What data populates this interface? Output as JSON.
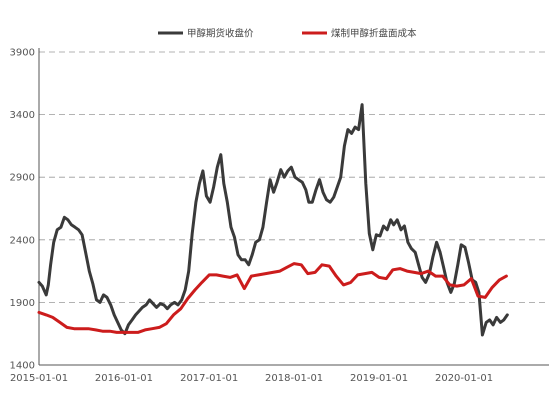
{
  "chart_data": {
    "type": "line",
    "legend_position": "top",
    "grid": {
      "horizontal": true,
      "vertical": false,
      "style": "dashed"
    },
    "ylim": [
      1400,
      3900
    ],
    "y_ticks": [
      1400,
      1900,
      2400,
      2900,
      3400,
      3900
    ],
    "xlim": [
      "2015-01-01",
      "2020-12-31"
    ],
    "x_ticks": [
      "2015-01-01",
      "2016-01-01",
      "2017-01-01",
      "2018-01-01",
      "2019-01-01",
      "2020-01-01"
    ],
    "series": [
      {
        "name": "甲醇期货收盘价",
        "color": "#3a3a3a",
        "points": [
          [
            "2015-01-01",
            2060
          ],
          [
            "2015-01-15",
            2030
          ],
          [
            "2015-02-01",
            1960
          ],
          [
            "2015-02-10",
            2040
          ],
          [
            "2015-02-20",
            2200
          ],
          [
            "2015-03-05",
            2380
          ],
          [
            "2015-03-20",
            2480
          ],
          [
            "2015-04-05",
            2500
          ],
          [
            "2015-04-20",
            2580
          ],
          [
            "2015-05-05",
            2560
          ],
          [
            "2015-05-20",
            2520
          ],
          [
            "2015-06-05",
            2500
          ],
          [
            "2015-06-20",
            2480
          ],
          [
            "2015-07-05",
            2440
          ],
          [
            "2015-07-20",
            2300
          ],
          [
            "2015-08-05",
            2150
          ],
          [
            "2015-08-20",
            2050
          ],
          [
            "2015-09-05",
            1920
          ],
          [
            "2015-09-20",
            1900
          ],
          [
            "2015-10-05",
            1960
          ],
          [
            "2015-10-20",
            1940
          ],
          [
            "2015-11-05",
            1880
          ],
          [
            "2015-11-20",
            1800
          ],
          [
            "2015-12-05",
            1740
          ],
          [
            "2015-12-20",
            1680
          ],
          [
            "2016-01-05",
            1650
          ],
          [
            "2016-01-20",
            1720
          ],
          [
            "2016-02-05",
            1760
          ],
          [
            "2016-02-20",
            1800
          ],
          [
            "2016-03-05",
            1830
          ],
          [
            "2016-03-20",
            1860
          ],
          [
            "2016-04-05",
            1880
          ],
          [
            "2016-04-20",
            1920
          ],
          [
            "2016-05-05",
            1890
          ],
          [
            "2016-05-20",
            1860
          ],
          [
            "2016-06-05",
            1890
          ],
          [
            "2016-06-20",
            1880
          ],
          [
            "2016-07-05",
            1850
          ],
          [
            "2016-07-20",
            1880
          ],
          [
            "2016-08-05",
            1900
          ],
          [
            "2016-08-20",
            1880
          ],
          [
            "2016-09-05",
            1920
          ],
          [
            "2016-09-20",
            2000
          ],
          [
            "2016-10-05",
            2150
          ],
          [
            "2016-10-20",
            2450
          ],
          [
            "2016-11-05",
            2700
          ],
          [
            "2016-11-20",
            2850
          ],
          [
            "2016-12-05",
            2950
          ],
          [
            "2016-12-20",
            2750
          ],
          [
            "2017-01-05",
            2700
          ],
          [
            "2017-01-20",
            2820
          ],
          [
            "2017-02-05",
            2980
          ],
          [
            "2017-02-20",
            3080
          ],
          [
            "2017-03-05",
            2850
          ],
          [
            "2017-03-20",
            2700
          ],
          [
            "2017-04-05",
            2500
          ],
          [
            "2017-04-20",
            2420
          ],
          [
            "2017-05-05",
            2280
          ],
          [
            "2017-05-20",
            2240
          ],
          [
            "2017-06-05",
            2240
          ],
          [
            "2017-06-20",
            2200
          ],
          [
            "2017-07-05",
            2280
          ],
          [
            "2017-07-20",
            2380
          ],
          [
            "2017-08-05",
            2400
          ],
          [
            "2017-08-20",
            2500
          ],
          [
            "2017-09-05",
            2700
          ],
          [
            "2017-09-20",
            2880
          ],
          [
            "2017-10-05",
            2780
          ],
          [
            "2017-10-20",
            2860
          ],
          [
            "2017-11-05",
            2960
          ],
          [
            "2017-11-20",
            2900
          ],
          [
            "2017-12-05",
            2950
          ],
          [
            "2017-12-20",
            2980
          ],
          [
            "2018-01-05",
            2900
          ],
          [
            "2018-01-20",
            2880
          ],
          [
            "2018-02-05",
            2860
          ],
          [
            "2018-02-20",
            2800
          ],
          [
            "2018-03-05",
            2700
          ],
          [
            "2018-03-20",
            2700
          ],
          [
            "2018-04-05",
            2800
          ],
          [
            "2018-04-20",
            2880
          ],
          [
            "2018-05-05",
            2780
          ],
          [
            "2018-05-20",
            2720
          ],
          [
            "2018-06-05",
            2700
          ],
          [
            "2018-06-20",
            2740
          ],
          [
            "2018-07-05",
            2820
          ],
          [
            "2018-07-20",
            2900
          ],
          [
            "2018-08-05",
            3150
          ],
          [
            "2018-08-20",
            3280
          ],
          [
            "2018-09-05",
            3250
          ],
          [
            "2018-09-20",
            3300
          ],
          [
            "2018-10-05",
            3280
          ],
          [
            "2018-10-20",
            3480
          ],
          [
            "2018-11-05",
            2850
          ],
          [
            "2018-11-20",
            2450
          ],
          [
            "2018-12-05",
            2320
          ],
          [
            "2018-12-20",
            2440
          ],
          [
            "2019-01-05",
            2430
          ],
          [
            "2019-01-20",
            2510
          ],
          [
            "2019-02-05",
            2480
          ],
          [
            "2019-02-20",
            2560
          ],
          [
            "2019-03-05",
            2520
          ],
          [
            "2019-03-20",
            2560
          ],
          [
            "2019-04-05",
            2480
          ],
          [
            "2019-04-20",
            2510
          ],
          [
            "2019-05-05",
            2380
          ],
          [
            "2019-05-20",
            2330
          ],
          [
            "2019-06-05",
            2300
          ],
          [
            "2019-06-20",
            2200
          ],
          [
            "2019-07-05",
            2100
          ],
          [
            "2019-07-20",
            2060
          ],
          [
            "2019-08-05",
            2130
          ],
          [
            "2019-08-20",
            2260
          ],
          [
            "2019-09-05",
            2380
          ],
          [
            "2019-09-20",
            2300
          ],
          [
            "2019-10-05",
            2180
          ],
          [
            "2019-10-20",
            2060
          ],
          [
            "2019-11-05",
            1980
          ],
          [
            "2019-11-20",
            2050
          ],
          [
            "2019-12-05",
            2200
          ],
          [
            "2019-12-20",
            2360
          ],
          [
            "2020-01-05",
            2340
          ],
          [
            "2020-01-20",
            2220
          ],
          [
            "2020-02-05",
            2080
          ],
          [
            "2020-02-20",
            2060
          ],
          [
            "2020-03-05",
            1980
          ],
          [
            "2020-03-20",
            1640
          ],
          [
            "2020-04-05",
            1740
          ],
          [
            "2020-04-20",
            1760
          ],
          [
            "2020-05-05",
            1720
          ],
          [
            "2020-05-20",
            1780
          ],
          [
            "2020-06-05",
            1740
          ],
          [
            "2020-06-20",
            1760
          ],
          [
            "2020-07-05",
            1800
          ]
        ]
      },
      {
        "name": "煤制甲醇折盘面成本",
        "color": "#cc1c1c",
        "points": [
          [
            "2015-01-01",
            1820
          ],
          [
            "2015-02-01",
            1800
          ],
          [
            "2015-03-01",
            1780
          ],
          [
            "2015-04-01",
            1740
          ],
          [
            "2015-05-01",
            1700
          ],
          [
            "2015-06-01",
            1690
          ],
          [
            "2015-07-01",
            1690
          ],
          [
            "2015-08-01",
            1690
          ],
          [
            "2015-09-01",
            1680
          ],
          [
            "2015-10-01",
            1670
          ],
          [
            "2015-11-01",
            1670
          ],
          [
            "2015-12-01",
            1660
          ],
          [
            "2016-01-01",
            1660
          ],
          [
            "2016-02-01",
            1660
          ],
          [
            "2016-03-01",
            1660
          ],
          [
            "2016-04-01",
            1680
          ],
          [
            "2016-05-01",
            1690
          ],
          [
            "2016-06-01",
            1700
          ],
          [
            "2016-07-01",
            1730
          ],
          [
            "2016-08-01",
            1800
          ],
          [
            "2016-09-01",
            1850
          ],
          [
            "2016-10-01",
            1930
          ],
          [
            "2016-11-01",
            2000
          ],
          [
            "2016-12-01",
            2060
          ],
          [
            "2017-01-01",
            2120
          ],
          [
            "2017-02-01",
            2120
          ],
          [
            "2017-03-01",
            2110
          ],
          [
            "2017-04-01",
            2100
          ],
          [
            "2017-05-01",
            2120
          ],
          [
            "2017-06-01",
            2010
          ],
          [
            "2017-07-01",
            2110
          ],
          [
            "2017-08-01",
            2120
          ],
          [
            "2017-09-01",
            2130
          ],
          [
            "2017-10-01",
            2140
          ],
          [
            "2017-11-01",
            2150
          ],
          [
            "2017-12-01",
            2180
          ],
          [
            "2018-01-01",
            2210
          ],
          [
            "2018-02-01",
            2200
          ],
          [
            "2018-03-01",
            2130
          ],
          [
            "2018-04-01",
            2140
          ],
          [
            "2018-05-01",
            2200
          ],
          [
            "2018-06-01",
            2190
          ],
          [
            "2018-07-01",
            2110
          ],
          [
            "2018-08-01",
            2040
          ],
          [
            "2018-09-01",
            2060
          ],
          [
            "2018-10-01",
            2120
          ],
          [
            "2018-11-01",
            2130
          ],
          [
            "2018-12-01",
            2140
          ],
          [
            "2019-01-01",
            2100
          ],
          [
            "2019-02-01",
            2090
          ],
          [
            "2019-03-01",
            2160
          ],
          [
            "2019-04-01",
            2170
          ],
          [
            "2019-05-01",
            2150
          ],
          [
            "2019-06-01",
            2140
          ],
          [
            "2019-07-01",
            2130
          ],
          [
            "2019-08-01",
            2150
          ],
          [
            "2019-09-01",
            2110
          ],
          [
            "2019-10-01",
            2110
          ],
          [
            "2019-11-01",
            2040
          ],
          [
            "2019-12-01",
            2030
          ],
          [
            "2020-01-01",
            2040
          ],
          [
            "2020-02-01",
            2090
          ],
          [
            "2020-03-01",
            1950
          ],
          [
            "2020-04-01",
            1940
          ],
          [
            "2020-05-01",
            2020
          ],
          [
            "2020-06-01",
            2080
          ],
          [
            "2020-07-01",
            2110
          ]
        ]
      }
    ]
  }
}
